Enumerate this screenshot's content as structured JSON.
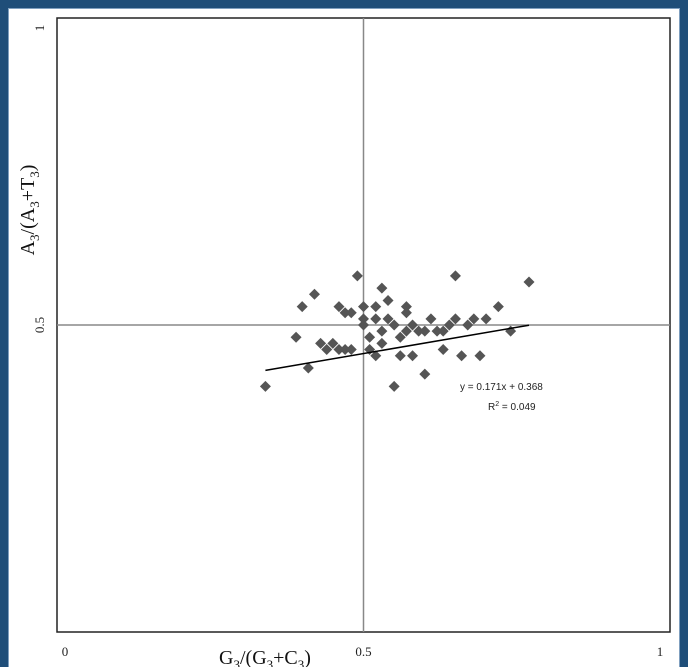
{
  "chart_data": {
    "type": "scatter",
    "xlim": [
      0,
      1
    ],
    "ylim": [
      0,
      1
    ],
    "x_ticks": [
      {
        "value": 0,
        "label": "0"
      },
      {
        "value": 0.5,
        "label": "0.5"
      },
      {
        "value": 1,
        "label": "1"
      }
    ],
    "y_ticks": [
      {
        "value": 0.5,
        "label": "0.5"
      },
      {
        "value": 1,
        "label": "1"
      }
    ],
    "xlabel": {
      "base": "G",
      "sub1": "3",
      "mid": "/(G",
      "sub2": "3",
      "mid2": "+C",
      "sub3": "3",
      "end": ")"
    },
    "ylabel": {
      "base": "A",
      "sub1": "3",
      "mid": "/(A",
      "sub2": "3",
      "mid2": "+T",
      "sub3": "3",
      "end": ")"
    },
    "reference_lines": {
      "x": 0.5,
      "y": 0.5
    },
    "grid": false,
    "marker": "diamond",
    "marker_color": "#555555",
    "points": [
      [
        0.34,
        0.4
      ],
      [
        0.41,
        0.43
      ],
      [
        0.39,
        0.48
      ],
      [
        0.4,
        0.53
      ],
      [
        0.42,
        0.55
      ],
      [
        0.43,
        0.47
      ],
      [
        0.44,
        0.46
      ],
      [
        0.45,
        0.47
      ],
      [
        0.46,
        0.46
      ],
      [
        0.46,
        0.53
      ],
      [
        0.47,
        0.52
      ],
      [
        0.48,
        0.52
      ],
      [
        0.47,
        0.46
      ],
      [
        0.48,
        0.46
      ],
      [
        0.49,
        0.58
      ],
      [
        0.5,
        0.5
      ],
      [
        0.5,
        0.51
      ],
      [
        0.51,
        0.48
      ],
      [
        0.51,
        0.46
      ],
      [
        0.52,
        0.45
      ],
      [
        0.52,
        0.53
      ],
      [
        0.53,
        0.49
      ],
      [
        0.53,
        0.56
      ],
      [
        0.54,
        0.51
      ],
      [
        0.54,
        0.54
      ],
      [
        0.55,
        0.5
      ],
      [
        0.55,
        0.4
      ],
      [
        0.56,
        0.48
      ],
      [
        0.56,
        0.45
      ],
      [
        0.57,
        0.53
      ],
      [
        0.57,
        0.52
      ],
      [
        0.57,
        0.49
      ],
      [
        0.58,
        0.45
      ],
      [
        0.58,
        0.5
      ],
      [
        0.59,
        0.49
      ],
      [
        0.6,
        0.49
      ],
      [
        0.6,
        0.42
      ],
      [
        0.61,
        0.51
      ],
      [
        0.62,
        0.49
      ],
      [
        0.63,
        0.46
      ],
      [
        0.63,
        0.49
      ],
      [
        0.64,
        0.5
      ],
      [
        0.65,
        0.51
      ],
      [
        0.65,
        0.58
      ],
      [
        0.66,
        0.45
      ],
      [
        0.67,
        0.5
      ],
      [
        0.68,
        0.51
      ],
      [
        0.69,
        0.45
      ],
      [
        0.7,
        0.51
      ],
      [
        0.72,
        0.53
      ],
      [
        0.74,
        0.49
      ],
      [
        0.77,
        0.57
      ],
      [
        0.53,
        0.47
      ],
      [
        0.52,
        0.51
      ],
      [
        0.5,
        0.53
      ]
    ],
    "trendline": {
      "slope": 0.171,
      "intercept": 0.368,
      "x_range": [
        0.34,
        0.77
      ]
    },
    "annotations": {
      "equation": "y = 0.171x + 0.368",
      "r2_prefix": "R",
      "r2_sup": "2",
      "r2_suffix": " = 0.049"
    }
  }
}
